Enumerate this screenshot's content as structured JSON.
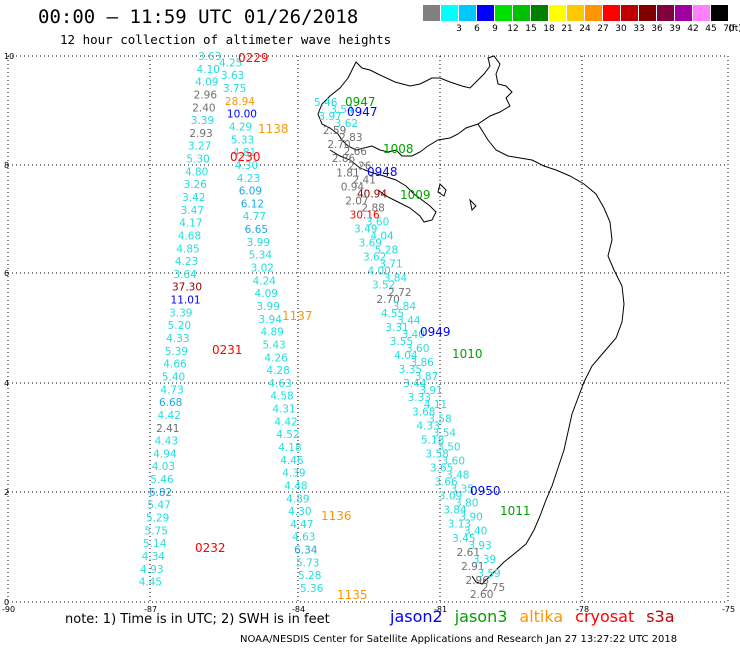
{
  "header": {
    "title": "00:00 – 11:59 UTC 01/26/2018",
    "subtitle": "12 hour collection of altimeter wave heights"
  },
  "legend": {
    "unit": "(ft)",
    "bins": [
      {
        "label": "",
        "color": "#808080"
      },
      {
        "label": "3",
        "color": "#00ffff"
      },
      {
        "label": "6",
        "color": "#00c8ff"
      },
      {
        "label": "9",
        "color": "#0000ff"
      },
      {
        "label": "12",
        "color": "#00e000"
      },
      {
        "label": "15",
        "color": "#00c000"
      },
      {
        "label": "18",
        "color": "#008000"
      },
      {
        "label": "21",
        "color": "#ffff00"
      },
      {
        "label": "24",
        "color": "#ffc800"
      },
      {
        "label": "27",
        "color": "#ff9600"
      },
      {
        "label": "30",
        "color": "#ff0000"
      },
      {
        "label": "33",
        "color": "#c00000"
      },
      {
        "label": "36",
        "color": "#800000"
      },
      {
        "label": "39",
        "color": "#800040"
      },
      {
        "label": "42",
        "color": "#a000a0"
      },
      {
        "label": "45",
        "color": "#ff80ff"
      },
      {
        "label": "70",
        "color": "#000000"
      }
    ]
  },
  "axes": {
    "x_ticks": [
      "-90",
      "-87",
      "-84",
      "-81",
      "-78",
      "-75"
    ],
    "y_ticks": [
      "10",
      "8",
      "6",
      "4",
      "2",
      "0"
    ]
  },
  "tracks": {
    "t1": [
      "3.63",
      "4.25",
      "4.10",
      "3.63",
      "4.09",
      "3.75",
      "2.96",
      "28.94",
      "2.40",
      "10.00",
      "3.39",
      "4.29",
      "2.93",
      "5.33",
      "3.27",
      "4.81",
      "5.30",
      "4.30",
      "4.80",
      "4.23",
      "3.26",
      "6.09",
      "3.42",
      "6.12",
      "3.47",
      "4.77",
      "4.17",
      "6.65",
      "4.68",
      "3.99",
      "4.85",
      "5.34",
      "4.23",
      "3.02",
      "3.64",
      "4.24",
      "37.30",
      "4.09",
      "11.01",
      "3.99",
      "3.39",
      "3.94",
      "5.20",
      "4.89",
      "4.33",
      "5.43",
      "5.39",
      "4.26",
      "4.66",
      "4.28",
      "5.40",
      "4.63",
      "4.73",
      "4.58",
      "6.68",
      "4.31",
      "4.42",
      "4.42",
      "2.41",
      "4.52",
      "4.43",
      "4.18",
      "4.94",
      "4.46",
      "4.03",
      "4.39",
      "5.46",
      "4.48",
      "6.82",
      "4.89",
      "5.47",
      "4.30",
      "5.29",
      "4.47",
      "5.75",
      "4.63",
      "5.14",
      "6.34",
      "4.34",
      "5.73",
      "4.93",
      "5.28",
      "4.45",
      "5.36"
    ],
    "t2": [
      "5.46",
      "3.54",
      "3.97",
      "3.62",
      "2.59",
      "2.83",
      "2.70",
      "2.66",
      "2.86",
      "2.26",
      "1.81",
      "2.41",
      "0.94",
      "40.94",
      "2.07",
      "2.88",
      "30.16",
      "3.60",
      "3.49",
      "4.04",
      "3.69",
      "5.28",
      "3.62",
      "3.71",
      "4.00",
      "3.84",
      "3.52",
      "2.72",
      "2.70",
      "3.84",
      "4.55",
      "3.44",
      "3.31",
      "3.40",
      "3.55",
      "3.60",
      "4.04",
      "3.86",
      "3.35",
      "3.87",
      "3.44",
      "3.91",
      "3.33",
      "4.11",
      "3.68",
      "3.58",
      "4.33",
      "3.54",
      "5.18",
      "3.50",
      "3.58",
      "3.60",
      "3.65",
      "3.48",
      "3.66",
      "3.35",
      "3.09",
      "3.80",
      "3.84",
      "3.90",
      "3.13",
      "3.40",
      "3.45",
      "3.93",
      "2.61",
      "3.39",
      "2.91",
      "3.59",
      "2.96",
      "2.75",
      "2.60"
    ],
    "times": [
      {
        "t": "0229",
        "color": "#ff0000"
      },
      {
        "t": "0947",
        "color": "#00a000"
      },
      {
        "t": "0947",
        "color": "#0000ff"
      },
      {
        "t": "1138",
        "color": "#ff9600"
      },
      {
        "t": "1008",
        "color": "#00a000"
      },
      {
        "t": "0230",
        "color": "#ff0000"
      },
      {
        "t": "0948",
        "color": "#0000ff"
      },
      {
        "t": "1009",
        "color": "#00a000"
      },
      {
        "t": "1137",
        "color": "#ff9600"
      },
      {
        "t": "0231",
        "color": "#ff0000"
      },
      {
        "t": "0949",
        "color": "#0000ff"
      },
      {
        "t": "1010",
        "color": "#00a000"
      },
      {
        "t": "0950",
        "color": "#0000ff"
      },
      {
        "t": "1011",
        "color": "#00a000"
      },
      {
        "t": "1136",
        "color": "#ff9600"
      },
      {
        "t": "0232",
        "color": "#ff0000"
      },
      {
        "t": "1135",
        "color": "#ff9600"
      }
    ]
  },
  "note": "note: 1) Time is in UTC; 2) SWH is in feet",
  "satellites": [
    {
      "name": "jason2",
      "color": "#0000ff"
    },
    {
      "name": "jason3",
      "color": "#00a000"
    },
    {
      "name": "altika",
      "color": "#ff9600"
    },
    {
      "name": "cryosat",
      "color": "#ff0000"
    },
    {
      "name": "s3a",
      "color": "#c00000"
    }
  ],
  "footer": "NOAA/NESDIS Center for Satellite Applications and Research   Jan 27 13:27:22 UTC 2018"
}
